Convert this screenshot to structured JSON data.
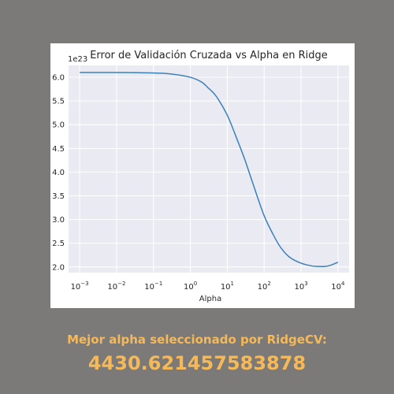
{
  "colors": {
    "background": "#7b7a78",
    "plot_background": "#eaeaf2",
    "line": "#3a81ba",
    "caption": "#f5b95a"
  },
  "caption": {
    "label": "Mejor alpha seleccionado por RidgeCV:",
    "value": "4430.621457583878"
  },
  "chart_data": {
    "type": "line",
    "title": "Error de Validación Cruzada vs Alpha en Ridge",
    "xlabel": "Alpha",
    "ylabel": "",
    "y_offset_label": "1e23",
    "x_scale": "log",
    "grid": true,
    "xlim": [
      0.0005,
      20000
    ],
    "ylim": [
      1.88,
      6.25
    ],
    "x_ticks": [
      {
        "value": 0.001,
        "base": "10",
        "exp": "−3"
      },
      {
        "value": 0.01,
        "base": "10",
        "exp": "−2"
      },
      {
        "value": 0.1,
        "base": "10",
        "exp": "−1"
      },
      {
        "value": 1,
        "base": "10",
        "exp": "0"
      },
      {
        "value": 10,
        "base": "10",
        "exp": "1"
      },
      {
        "value": 100,
        "base": "10",
        "exp": "2"
      },
      {
        "value": 1000,
        "base": "10",
        "exp": "3"
      },
      {
        "value": 10000,
        "base": "10",
        "exp": "4"
      }
    ],
    "y_ticks": [
      "2.0",
      "2.5",
      "3.0",
      "3.5",
      "4.0",
      "4.5",
      "5.0",
      "5.5",
      "6.0"
    ],
    "series": [
      {
        "x": [
          0.001,
          0.01,
          0.1,
          0.3,
          1,
          2,
          3,
          5,
          10,
          20,
          30,
          50,
          100,
          200,
          300,
          500,
          1000,
          2000,
          3000,
          4430.62,
          6000,
          10000
        ],
        "y": [
          6.1,
          6.1,
          6.09,
          6.07,
          6.0,
          5.9,
          5.78,
          5.6,
          5.2,
          4.62,
          4.26,
          3.75,
          3.08,
          2.6,
          2.38,
          2.2,
          2.08,
          2.02,
          2.01,
          2.01,
          2.03,
          2.1
        ]
      }
    ]
  }
}
